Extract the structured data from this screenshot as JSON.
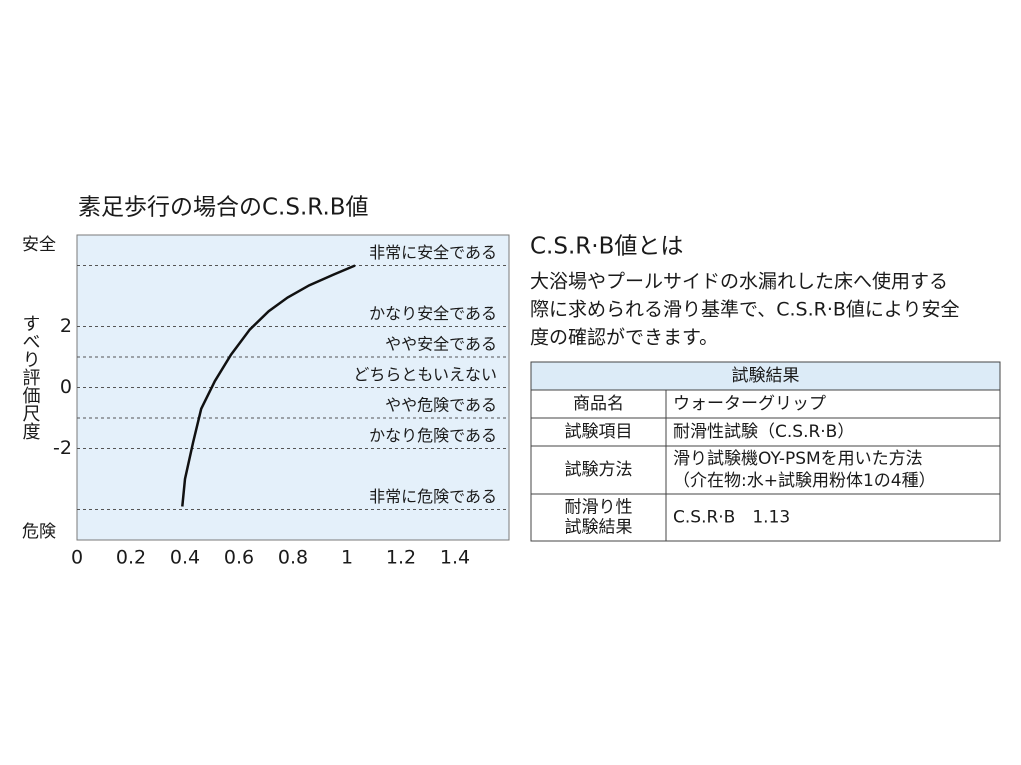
{
  "chart_data": {
    "type": "line",
    "title": "素足歩行の場合のC.S.R.B値",
    "y_label": "すべり評価尺度",
    "y_top_label": "安全",
    "y_bottom_label": "危険",
    "xlim": [
      0,
      1.6
    ],
    "xticks": [
      0,
      0.2,
      0.4,
      0.6,
      0.8,
      1.0,
      1.2,
      1.4
    ],
    "ylim": [
      -5,
      5
    ],
    "yticks": [
      2,
      0,
      -2
    ],
    "bands": [
      {
        "label": "非常に安全である",
        "min": 4,
        "max": 5
      },
      {
        "label": "かなり安全である",
        "min": 2,
        "max": 4
      },
      {
        "label": "やや安全である",
        "min": 1,
        "max": 2
      },
      {
        "label": "どちらともいえない",
        "min": 0,
        "max": 1
      },
      {
        "label": "やや危険である",
        "min": -1,
        "max": 0
      },
      {
        "label": "かなり危険である",
        "min": -2,
        "max": -1
      },
      {
        "label": "非常に危険である",
        "min": -4,
        "max": -2
      }
    ],
    "color": "#111111",
    "x": [
      0.39,
      0.4,
      0.43,
      0.46,
      0.51,
      0.57,
      0.64,
      0.71,
      0.78,
      0.86,
      0.95,
      1.03
    ],
    "values": [
      -3.9,
      -3.0,
      -1.8,
      -0.7,
      0.2,
      1.07,
      1.9,
      2.5,
      2.95,
      3.35,
      3.7,
      4.0
    ]
  },
  "info": {
    "heading": "C.S.R·B値とは",
    "lines": [
      "大浴場やプールサイドの水漏れした床へ使用する",
      "際に求められる滑り基準で、C.S.R·B値により安全",
      "度の確認ができます。"
    ]
  },
  "table": {
    "title": "試験結果",
    "rows": [
      {
        "label": [
          "商品名"
        ],
        "value": [
          "ウォーターグリップ"
        ]
      },
      {
        "label": [
          "試験項目"
        ],
        "value": [
          "耐滑性試験（C.S.R·B）"
        ]
      },
      {
        "label": [
          "試験方法"
        ],
        "value": [
          "滑り試験機OY-PSMを用いた方法",
          "（介在物:水+試験用粉体1の4種）"
        ]
      },
      {
        "label": [
          "耐滑り性",
          "試験結果"
        ],
        "value": [
          "C.S.R·B　1.13"
        ]
      }
    ]
  }
}
